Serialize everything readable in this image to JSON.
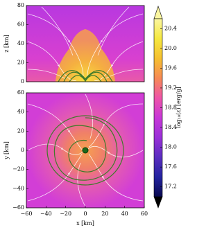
{
  "chart_data": [
    {
      "type": "heatmap",
      "ylabel": "z [km]",
      "xlim": [
        -60,
        60
      ],
      "ylim": [
        0,
        80
      ],
      "yticks": [
        0,
        20,
        40,
        60,
        80
      ]
    },
    {
      "type": "heatmap",
      "xlabel": "x [km]",
      "ylabel": "y [km]",
      "xlim": [
        -60,
        60
      ],
      "ylim": [
        -60,
        60
      ],
      "xticks": [
        {
          "value": -60,
          "label": "−60"
        },
        {
          "value": -40,
          "label": "−40"
        },
        {
          "value": -20,
          "label": "−20"
        },
        0,
        20,
        40,
        60
      ],
      "yticks": [
        {
          "value": -60,
          "label": "−60"
        },
        {
          "value": -40,
          "label": "−40"
        },
        {
          "value": -20,
          "label": "−20"
        },
        0,
        20,
        40,
        60
      ]
    },
    {
      "type": "colorbar",
      "ylabel": "log₁₀(ε) [erg/g]",
      "ylim": [
        17.0,
        20.6
      ],
      "yticks": [
        17.2,
        17.6,
        {
          "value": 18,
          "label": "18.0"
        },
        18.4,
        18.8,
        19.2,
        19.6,
        {
          "value": 20,
          "label": "20.0"
        },
        20.4
      ],
      "colormap": [
        "#0a0a50",
        "#2424a0",
        "#5a2ec0",
        "#9a30d8",
        "#c838d8",
        "#ee55a8",
        "#f68a55",
        "#f5c030",
        "#f5e840",
        "#fbf6a0"
      ]
    }
  ]
}
